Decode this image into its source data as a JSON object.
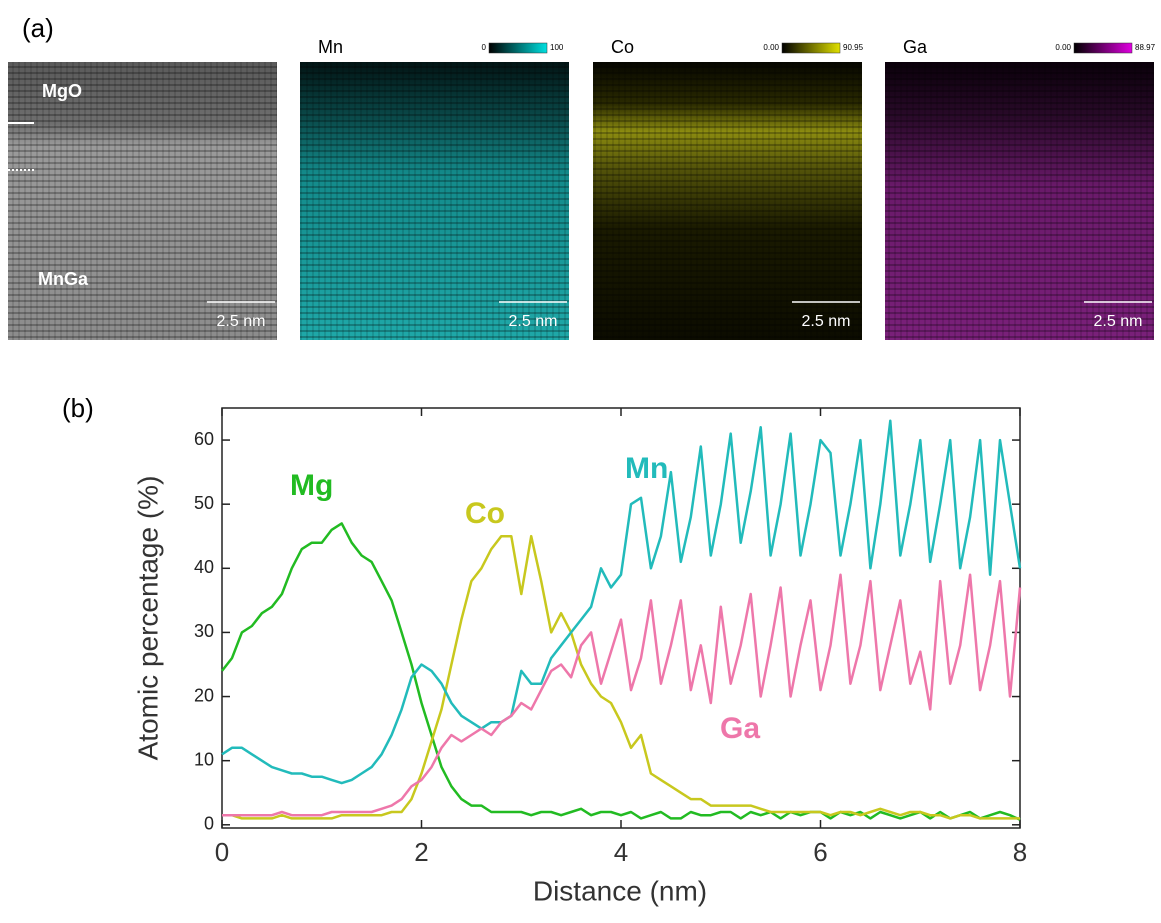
{
  "panel_a": {
    "label": "(a)",
    "images": [
      {
        "title": null,
        "scale_bar": "2.5 nm",
        "labels": [
          "MgO",
          "MnGa"
        ]
      },
      {
        "title": "Mn",
        "scale_bar": "2.5 nm",
        "colorbar": [
          "0",
          "100"
        ]
      },
      {
        "title": "Co",
        "scale_bar": "2.5 nm",
        "colorbar": [
          "0.00",
          "90.95"
        ]
      },
      {
        "title": "Ga",
        "scale_bar": "2.5 nm",
        "colorbar": [
          "0.00",
          "88.97"
        ]
      }
    ]
  },
  "chart_data": {
    "type": "line",
    "label": "(b)",
    "x_label": "Distance (nm)",
    "y_label": "Atomic percentage (%)",
    "x": [
      0,
      0.1,
      0.2,
      0.3,
      0.4,
      0.5,
      0.6,
      0.7,
      0.8,
      0.9,
      1,
      1.1,
      1.2,
      1.3,
      1.4,
      1.5,
      1.6,
      1.7,
      1.8,
      1.9,
      2,
      2.1,
      2.2,
      2.3,
      2.4,
      2.5,
      2.6,
      2.7,
      2.8,
      2.9,
      3,
      3.1,
      3.2,
      3.3,
      3.4,
      3.5,
      3.6,
      3.7,
      3.8,
      3.9,
      4,
      4.1,
      4.2,
      4.3,
      4.4,
      4.5,
      4.6,
      4.7,
      4.8,
      4.9,
      5,
      5.1,
      5.2,
      5.3,
      5.4,
      5.5,
      5.6,
      5.7,
      5.8,
      5.9,
      6,
      6.1,
      6.2,
      6.3,
      6.4,
      6.5,
      6.6,
      6.7,
      6.8,
      6.9,
      7,
      7.1,
      7.2,
      7.3,
      7.4,
      7.5,
      7.6,
      7.7,
      7.8,
      7.9,
      8
    ],
    "series": [
      {
        "name": "Mg",
        "color": "#22bb22",
        "values": [
          24,
          26,
          30,
          31,
          33,
          34,
          36,
          40,
          43,
          44,
          44,
          46,
          47,
          44,
          42,
          41,
          38,
          35,
          30,
          25,
          19,
          14,
          9,
          6,
          4,
          3,
          3,
          2,
          2,
          2,
          2,
          1.5,
          2,
          2,
          1.5,
          2,
          2.5,
          1.5,
          2,
          2,
          1.5,
          2,
          1,
          1.5,
          2,
          1,
          1,
          2,
          1.5,
          1.5,
          2,
          2,
          1,
          2,
          1.5,
          2,
          1,
          2,
          1.5,
          2,
          2,
          1,
          2,
          1.5,
          2,
          1,
          2,
          1.5,
          1,
          1.5,
          2,
          1,
          2,
          1,
          1.5,
          2,
          1,
          1.5,
          2,
          1.5,
          0.8
        ]
      },
      {
        "name": "Co",
        "color": "#c8c81e",
        "values": [
          1.5,
          1.5,
          1,
          1,
          1,
          1,
          1.5,
          1,
          1,
          1,
          1,
          1,
          1.5,
          1.5,
          1.5,
          1.5,
          1.5,
          2,
          2,
          4,
          8,
          13,
          18,
          25,
          32,
          38,
          40,
          43,
          45,
          45,
          36,
          45,
          38,
          30,
          33,
          30,
          25,
          22,
          20,
          19,
          16,
          12,
          14,
          8,
          7,
          6,
          5,
          4,
          4,
          3,
          3,
          3,
          3,
          3,
          2.5,
          2,
          2,
          2,
          2,
          2,
          2,
          1.5,
          2,
          2,
          1.5,
          2,
          2.5,
          2,
          1.5,
          2,
          2,
          1.5,
          1.5,
          1,
          1.5,
          1.5,
          1,
          1,
          1,
          1,
          1
        ]
      },
      {
        "name": "Mn",
        "color": "#22bbbb",
        "values": [
          11,
          12,
          12,
          11,
          10,
          9,
          8.5,
          8,
          8,
          7.5,
          7.5,
          7,
          6.5,
          7,
          8,
          9,
          11,
          14,
          18,
          23,
          25,
          24,
          22,
          19,
          17,
          16,
          15,
          16,
          16,
          17,
          24,
          22,
          22,
          26,
          28,
          30,
          32,
          34,
          40,
          37,
          39,
          50,
          51,
          40,
          45,
          55,
          41,
          48,
          59,
          42,
          50,
          61,
          44,
          52,
          62,
          42,
          50,
          61,
          42,
          50,
          60,
          58,
          42,
          50,
          60,
          40,
          50,
          63,
          42,
          50,
          60,
          41,
          50,
          60,
          40,
          48,
          60,
          39,
          60,
          50,
          40
        ]
      },
      {
        "name": "Ga",
        "color": "#ee77aa",
        "values": [
          1.5,
          1.5,
          1.5,
          1.5,
          1.5,
          1.5,
          2,
          1.5,
          1.5,
          1.5,
          1.5,
          2,
          2,
          2,
          2,
          2,
          2.5,
          3,
          4,
          6,
          7,
          9,
          12,
          14,
          13,
          14,
          15,
          14,
          16,
          17,
          19,
          18,
          21,
          24,
          25,
          23,
          28,
          30,
          22,
          27,
          32,
          21,
          26,
          35,
          22,
          28,
          35,
          21,
          28,
          19,
          34,
          22,
          28,
          36,
          20,
          28,
          37,
          20,
          28,
          35,
          21,
          28,
          39,
          22,
          28,
          38,
          21,
          28,
          35,
          22,
          27,
          18,
          38,
          22,
          28,
          39,
          21,
          28,
          38,
          20,
          37
        ]
      }
    ],
    "xlim": [
      0,
      8
    ],
    "ylim": [
      -0.5,
      65
    ],
    "xticks": [
      0,
      2,
      4,
      6,
      8
    ],
    "yticks": [
      0,
      10,
      20,
      30,
      40,
      50,
      60
    ]
  }
}
